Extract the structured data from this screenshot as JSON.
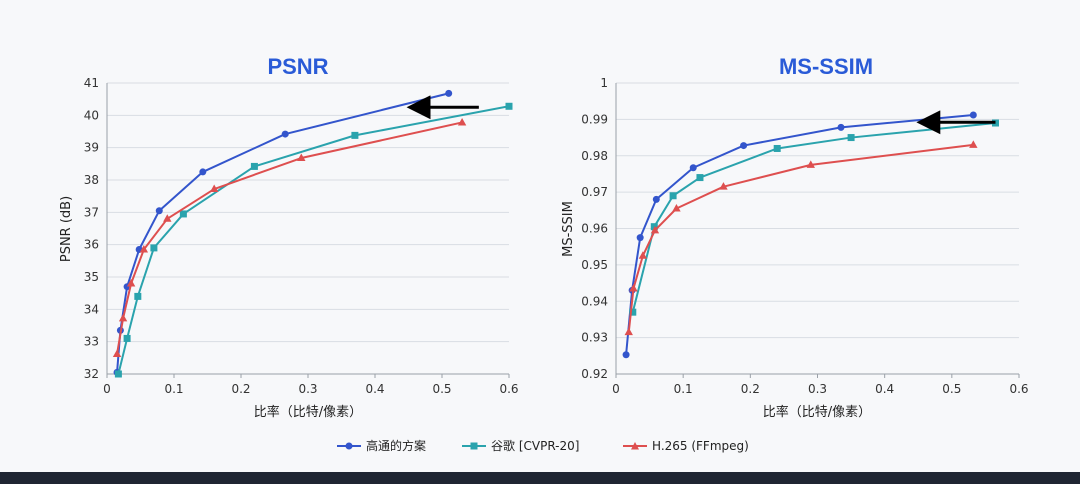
{
  "legend": [
    {
      "label": "高通的方案",
      "color": "#3355cc",
      "marker": "circle"
    },
    {
      "label": "谷歌 [CVPR-20]",
      "color": "#2aa3ad",
      "marker": "square"
    },
    {
      "label": "H.265 (FFmpeg)",
      "color": "#de4f4f",
      "marker": "triangle"
    }
  ],
  "chart_data": [
    {
      "type": "line",
      "title": "PSNR",
      "xlabel": "比率（比特/像素）",
      "ylabel": "PSNR (dB)",
      "xlim": [
        0,
        0.6
      ],
      "ylim": [
        32,
        41
      ],
      "xticks": [
        "0",
        "0.1",
        "0.2",
        "0.3",
        "0.4",
        "0.5",
        "0.6"
      ],
      "yticks": [
        "32",
        "33",
        "34",
        "35",
        "36",
        "37",
        "38",
        "39",
        "40",
        "41"
      ],
      "grid": true,
      "series": [
        {
          "name": "高通的方案",
          "color": "#3355cc",
          "marker": "circle",
          "x": [
            0.015,
            0.02,
            0.03,
            0.048,
            0.078,
            0.143,
            0.266,
            0.51
          ],
          "y": [
            32.05,
            33.35,
            34.7,
            35.85,
            37.05,
            38.25,
            39.42,
            40.68
          ]
        },
        {
          "name": "谷歌 [CVPR-20]",
          "color": "#2aa3ad",
          "marker": "square",
          "x": [
            0.017,
            0.03,
            0.046,
            0.07,
            0.114,
            0.22,
            0.37,
            0.6
          ],
          "y": [
            32.0,
            33.1,
            34.4,
            35.9,
            36.95,
            38.42,
            39.38,
            40.28
          ]
        },
        {
          "name": "H.265 (FFmpeg)",
          "color": "#de4f4f",
          "marker": "triangle",
          "x": [
            0.015,
            0.024,
            0.036,
            0.055,
            0.09,
            0.16,
            0.29,
            0.53
          ],
          "y": [
            32.62,
            33.72,
            34.8,
            35.85,
            36.8,
            37.72,
            38.68,
            39.78
          ]
        }
      ],
      "annotations": [
        {
          "type": "arrow",
          "direction": "left",
          "x_from": 0.555,
          "x_to": 0.465,
          "y": 40.25
        }
      ]
    },
    {
      "type": "line",
      "title": "MS-SSIM",
      "xlabel": "比率（比特/像素）",
      "ylabel": "MS-SSIM",
      "xlim": [
        0,
        0.6
      ],
      "ylim": [
        0.92,
        1.0
      ],
      "xticks": [
        "0",
        "0.1",
        "0.2",
        "0.3",
        "0.4",
        "0.5",
        "0.6"
      ],
      "yticks": [
        "0.92",
        "0.93",
        "0.94",
        "0.95",
        "0.96",
        "0.97",
        "0.98",
        "0.99",
        "1"
      ],
      "grid": true,
      "series": [
        {
          "name": "高通的方案",
          "color": "#3355cc",
          "marker": "circle",
          "x": [
            0.015,
            0.024,
            0.036,
            0.06,
            0.115,
            0.19,
            0.335,
            0.532
          ],
          "y": [
            0.9253,
            0.943,
            0.9575,
            0.968,
            0.9767,
            0.9828,
            0.9878,
            0.9912
          ]
        },
        {
          "name": "谷歌 [CVPR-20]",
          "color": "#2aa3ad",
          "marker": "square",
          "x": [
            0.025,
            0.057,
            0.085,
            0.125,
            0.24,
            0.35,
            0.565
          ],
          "y": [
            0.937,
            0.9605,
            0.969,
            0.974,
            0.982,
            0.985,
            0.989
          ]
        },
        {
          "name": "H.265 (FFmpeg)",
          "color": "#de4f4f",
          "marker": "triangle",
          "x": [
            0.019,
            0.026,
            0.04,
            0.058,
            0.09,
            0.16,
            0.29,
            0.532
          ],
          "y": [
            0.9315,
            0.9435,
            0.9525,
            0.9595,
            0.9655,
            0.9715,
            0.9775,
            0.983
          ]
        }
      ],
      "annotations": [
        {
          "type": "arrow",
          "direction": "left",
          "x_from": 0.565,
          "x_to": 0.465,
          "y": 0.9892
        }
      ]
    }
  ]
}
